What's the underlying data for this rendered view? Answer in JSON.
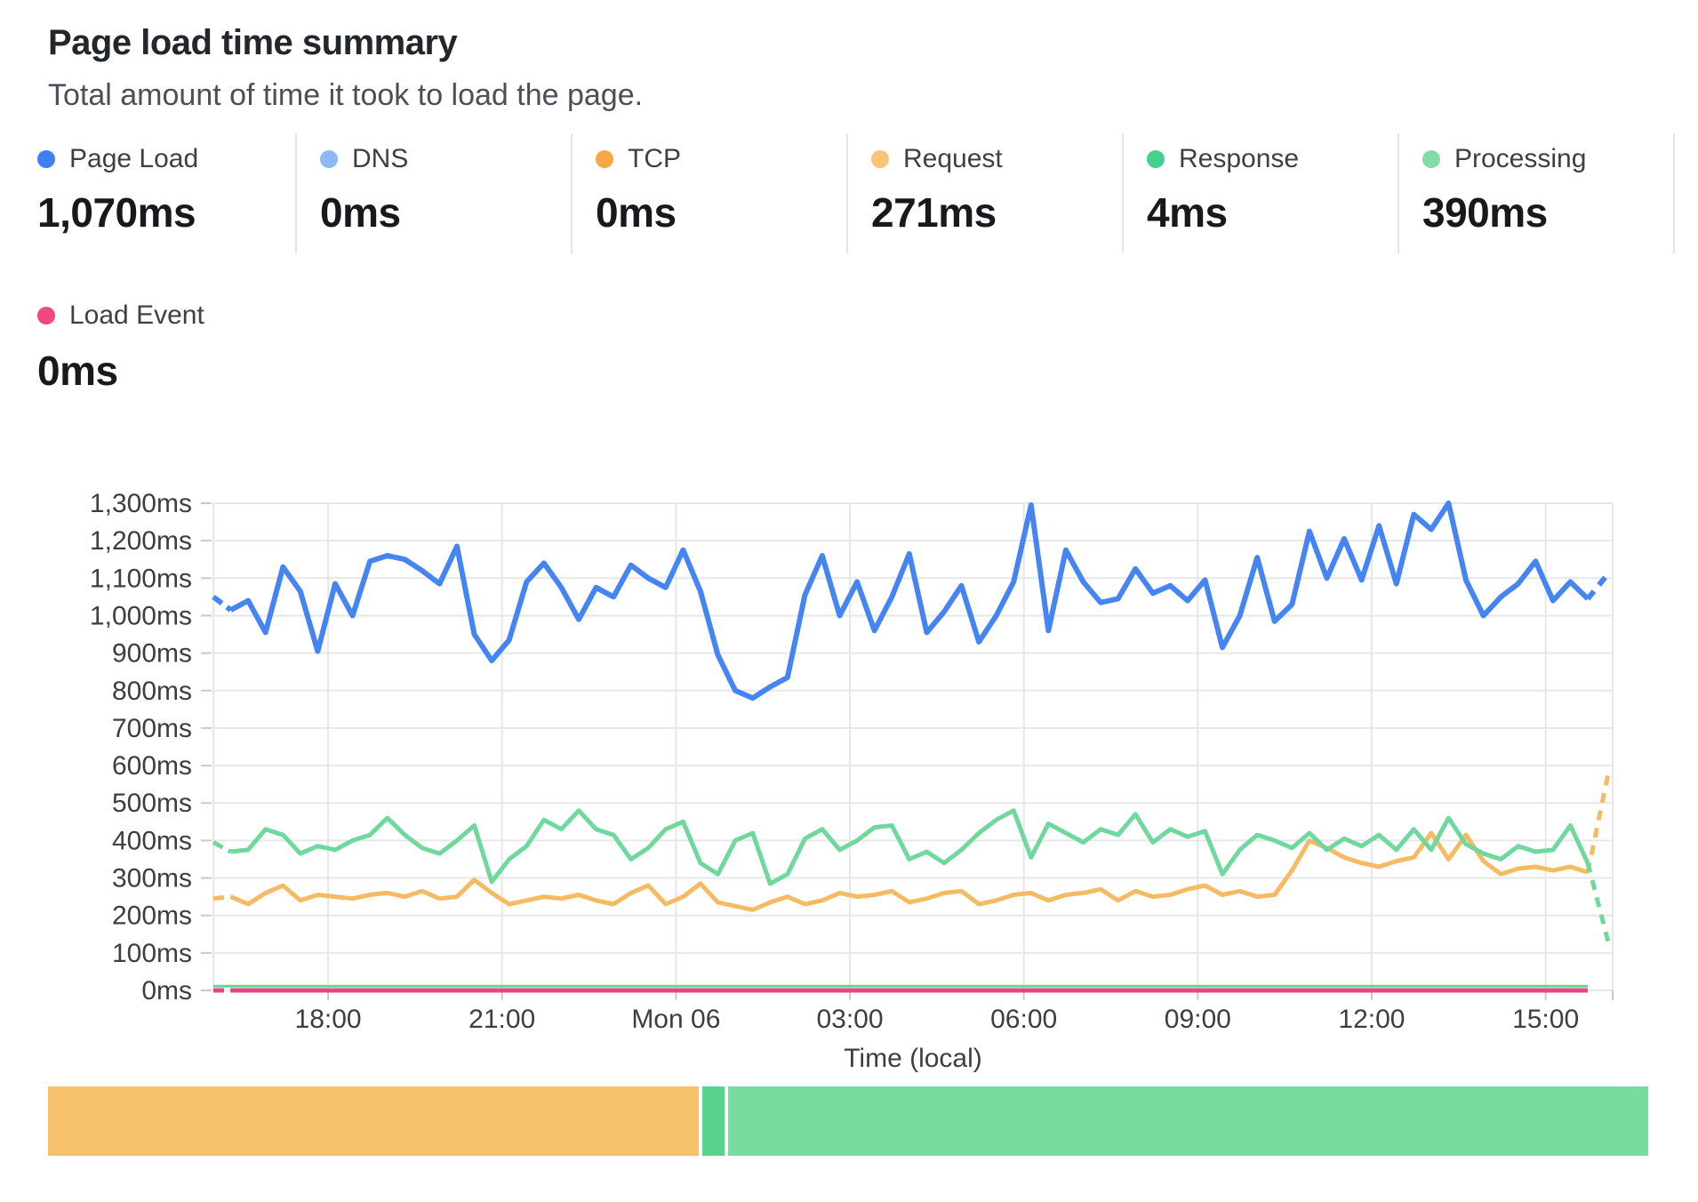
{
  "header": {
    "title": "Page load time summary",
    "subtitle": "Total amount of time it took to load the page."
  },
  "stats": [
    {
      "label": "Page Load",
      "value": "1,070ms",
      "dot_color": "#3f7ff2"
    },
    {
      "label": "DNS",
      "value": "0ms",
      "dot_color": "#8db9f9"
    },
    {
      "label": "TCP",
      "value": "0ms",
      "dot_color": "#f5a843"
    },
    {
      "label": "Request",
      "value": "271ms",
      "dot_color": "#f8c577"
    },
    {
      "label": "Response",
      "value": "4ms",
      "dot_color": "#47d08c"
    },
    {
      "label": "Processing",
      "value": "390ms",
      "dot_color": "#82dcaa"
    }
  ],
  "stats_row2": {
    "label": "Load Event",
    "value": "0ms",
    "dot_color": "#f1487f"
  },
  "chart_data": {
    "type": "line",
    "title": "Page load time summary",
    "xlabel": "Time (local)",
    "ylabel": "",
    "ylim": [
      0,
      1300
    ],
    "grid": true,
    "y_ticks": [
      "0ms",
      "100ms",
      "200ms",
      "300ms",
      "400ms",
      "500ms",
      "600ms",
      "700ms",
      "800ms",
      "900ms",
      "1,000ms",
      "1,100ms",
      "1,200ms",
      "1,300ms"
    ],
    "x_ticks": [
      "18:00",
      "21:00",
      "Mon 06",
      "03:00",
      "06:00",
      "09:00",
      "12:00",
      "15:00"
    ],
    "series": [
      {
        "name": "Page Load",
        "color": "#4484f3",
        "stroke_width": 6,
        "lead_dash": true,
        "tail_dashed_value": 1115,
        "y_offset": 0,
        "values": [
          1050,
          1015,
          1040,
          955,
          1130,
          1065,
          905,
          1085,
          1000,
          1145,
          1160,
          1150,
          1120,
          1085,
          1185,
          950,
          880,
          935,
          1090,
          1140,
          1075,
          990,
          1075,
          1050,
          1135,
          1100,
          1075,
          1175,
          1065,
          895,
          800,
          780,
          810,
          835,
          1055,
          1160,
          1000,
          1090,
          960,
          1050,
          1165,
          955,
          1010,
          1080,
          930,
          1000,
          1090,
          1295,
          960,
          1175,
          1090,
          1035,
          1045,
          1125,
          1060,
          1080,
          1040,
          1095,
          915,
          1000,
          1155,
          985,
          1030,
          1225,
          1100,
          1205,
          1095,
          1240,
          1085,
          1270,
          1230,
          1300,
          1095,
          1000,
          1050,
          1085,
          1145,
          1040,
          1090,
          1045
        ]
      },
      {
        "name": "Request",
        "color": "#f6bb62",
        "stroke_width": 5,
        "lead_dash": true,
        "tail_dashed_value": 590,
        "y_offset": 0,
        "values": [
          245,
          250,
          230,
          260,
          280,
          240,
          255,
          250,
          245,
          255,
          260,
          250,
          265,
          245,
          250,
          295,
          260,
          230,
          240,
          250,
          245,
          255,
          240,
          230,
          260,
          280,
          230,
          250,
          285,
          235,
          225,
          215,
          235,
          250,
          230,
          240,
          260,
          250,
          255,
          265,
          235,
          245,
          260,
          265,
          230,
          240,
          255,
          260,
          240,
          255,
          260,
          270,
          240,
          265,
          250,
          255,
          270,
          280,
          255,
          265,
          250,
          255,
          320,
          400,
          380,
          355,
          340,
          330,
          345,
          355,
          420,
          350,
          415,
          345,
          310,
          325,
          330,
          320,
          330,
          315
        ]
      },
      {
        "name": "Response",
        "color": "#63d596",
        "stroke_width": 3,
        "lead_dash": false,
        "tail_dashed_value": null,
        "y_offset": -3,
        "flat_value": 4
      },
      {
        "name": "Processing",
        "color": "#6fd89d",
        "stroke_width": 5,
        "lead_dash": true,
        "tail_dashed_value": 120,
        "y_offset": 0,
        "values": [
          395,
          370,
          375,
          430,
          415,
          365,
          385,
          375,
          400,
          415,
          460,
          415,
          380,
          365,
          400,
          440,
          290,
          350,
          385,
          455,
          430,
          480,
          430,
          415,
          350,
          380,
          430,
          450,
          340,
          310,
          400,
          420,
          285,
          310,
          405,
          430,
          375,
          400,
          435,
          440,
          350,
          370,
          340,
          375,
          420,
          455,
          480,
          355,
          445,
          420,
          395,
          430,
          415,
          470,
          395,
          430,
          410,
          425,
          310,
          375,
          415,
          400,
          380,
          420,
          375,
          405,
          385,
          415,
          375,
          430,
          375,
          460,
          390,
          365,
          350,
          385,
          370,
          375,
          440,
          340
        ]
      },
      {
        "name": "Load Event",
        "color": "#e0487e",
        "stroke_width": 5,
        "lead_dash": true,
        "tail_dashed_value": null,
        "y_offset": 0,
        "flat_value": 0
      }
    ]
  },
  "footer_bar": {
    "segments": [
      {
        "color": "#f8c16c",
        "frac": 0.406
      },
      {
        "color": "#57d38c",
        "frac": 0.014
      },
      {
        "color": "#77dc9e",
        "frac": 0.574
      }
    ]
  }
}
